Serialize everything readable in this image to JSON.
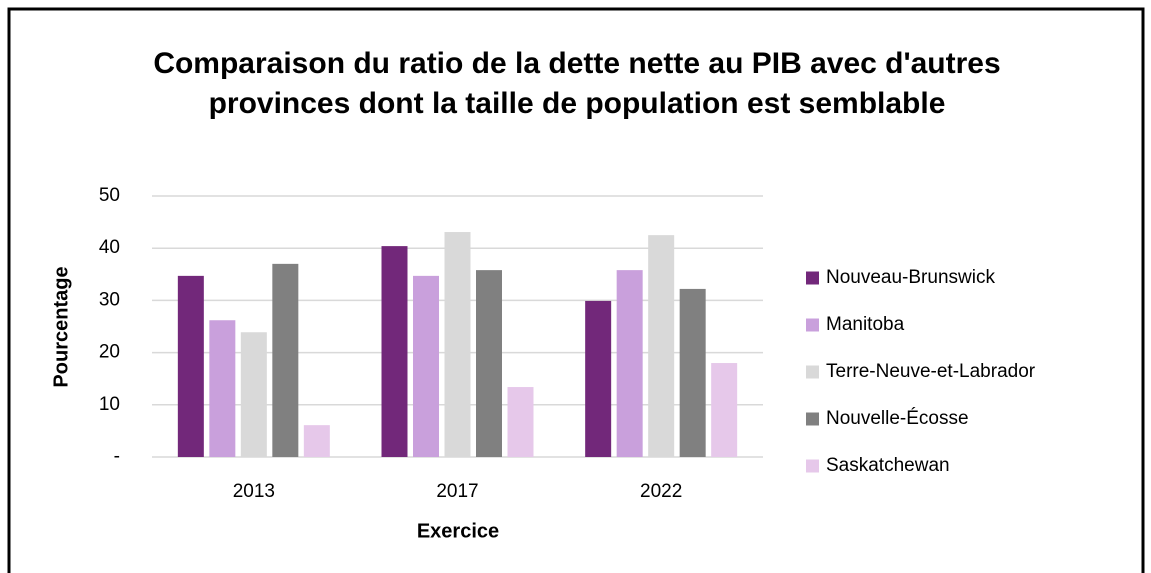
{
  "chart_data": {
    "type": "bar",
    "title": "Comparaison du ratio de la dette nette au PIB avec d'autres provinces dont la taille de population est semblable",
    "x_label": "Exercice",
    "y_label": "Pourcentage",
    "categories": [
      "2013",
      "2017",
      "2022"
    ],
    "series": [
      {
        "name": "Nouveau-Brunswick",
        "color": "#72287a",
        "values": [
          34.7,
          40.4,
          29.9
        ]
      },
      {
        "name": "Manitoba",
        "color": "#c9a0dc",
        "values": [
          26.2,
          34.7,
          35.8
        ]
      },
      {
        "name": "Terre-Neuve-et-Labrador",
        "color": "#d9d9d9",
        "values": [
          23.9,
          43.1,
          42.5
        ]
      },
      {
        "name": "Nouvelle-Écosse",
        "color": "#808080",
        "values": [
          37.0,
          35.8,
          32.2
        ]
      },
      {
        "name": "Saskatchewan",
        "color": "#e6c8ea",
        "values": [
          6.1,
          13.4,
          18.0
        ]
      }
    ],
    "ylim": [
      0,
      50
    ],
    "yticks": [
      {
        "value": 0,
        "label": "-"
      },
      10,
      20,
      30,
      40,
      50
    ],
    "grid": true,
    "legend": "right"
  }
}
